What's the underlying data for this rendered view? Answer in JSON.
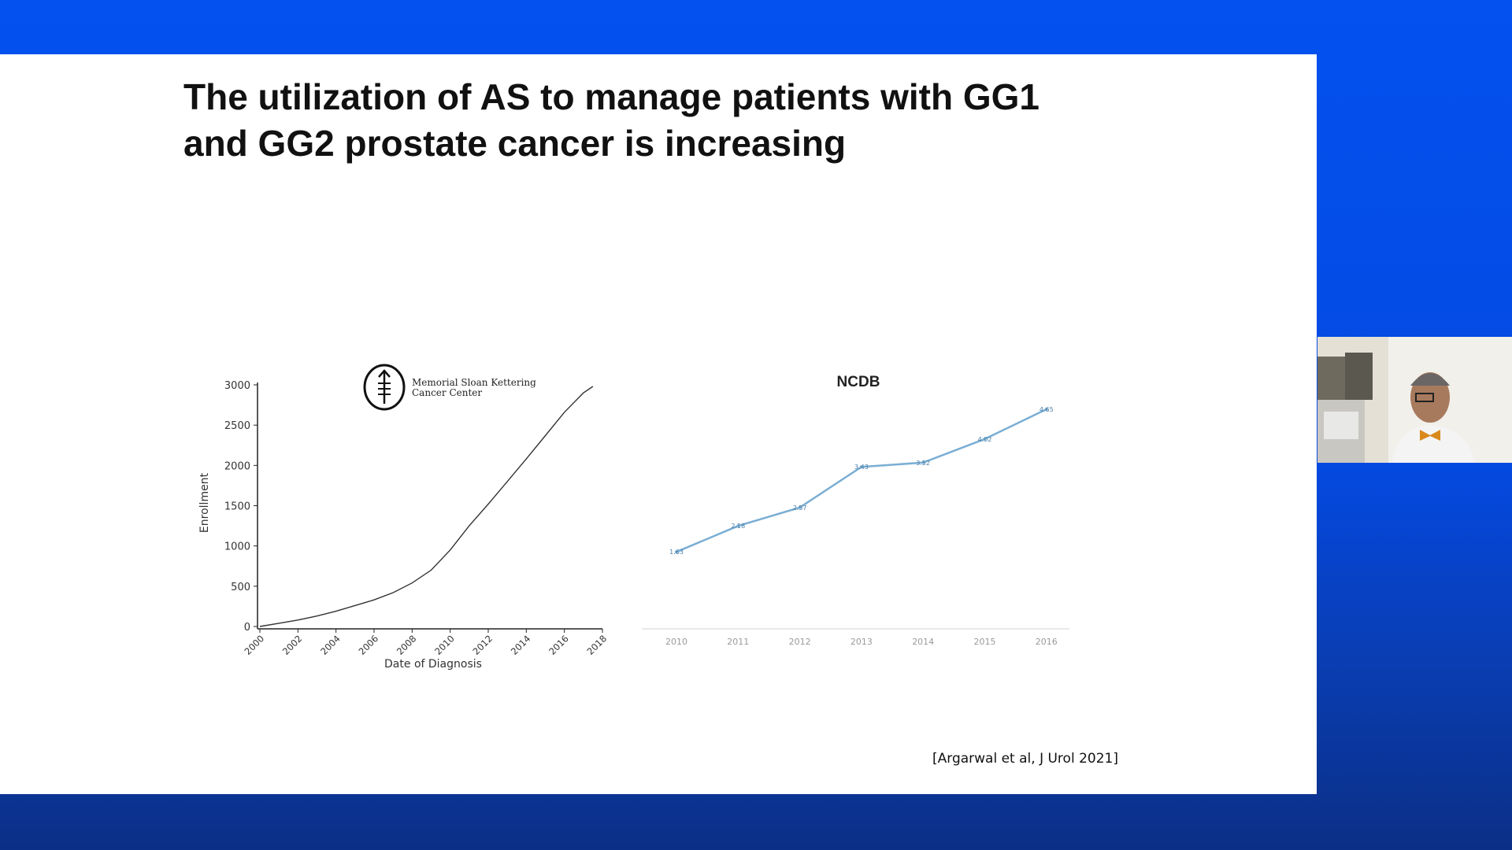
{
  "slide": {
    "title_line1": "The utilization of AS to manage patients with GG1",
    "title_line2": "and GG2 prostate cancer is increasing",
    "citation": "[Argarwal et al, J Urol 2021]"
  },
  "logo": {
    "line1": "Memorial Sloan Kettering",
    "line2": "Cancer Center"
  },
  "chart_data": [
    {
      "type": "line",
      "xlabel": "Date of Diagnosis",
      "ylabel": "Enrollment",
      "x_ticks": [
        "2000",
        "2002",
        "2004",
        "2006",
        "2008",
        "2010",
        "2012",
        "2014",
        "2016",
        "2018"
      ],
      "y_ticks": [
        "0",
        "500",
        "1000",
        "1500",
        "2000",
        "2500",
        "3000"
      ],
      "xlim": [
        2000,
        2018
      ],
      "ylim": [
        0,
        3000
      ],
      "series": [
        {
          "x": [
            2000,
            2001,
            2002,
            2003,
            2004,
            2005,
            2006,
            2007,
            2008,
            2009,
            2010,
            2011,
            2012,
            2013,
            2014,
            2015,
            2016,
            2017,
            2017.5
          ],
          "y": [
            0,
            40,
            80,
            130,
            190,
            260,
            330,
            420,
            540,
            700,
            950,
            1250,
            1520,
            1800,
            2080,
            2370,
            2660,
            2900,
            2980
          ]
        }
      ],
      "color": "#333333",
      "grid": false
    },
    {
      "type": "line",
      "title": "NCDB",
      "categories": [
        "2010",
        "2011",
        "2012",
        "2013",
        "2014",
        "2015",
        "2016"
      ],
      "values": [
        1.63,
        2.18,
        2.57,
        3.43,
        3.52,
        4.02,
        4.65
      ],
      "value_labels": [
        "1.63",
        "2.18",
        "2.57",
        "3.43",
        "3.52",
        "4.02",
        "4.65"
      ],
      "ylim": [
        0,
        5.5
      ],
      "color": "#7aaed4",
      "grid": false
    }
  ]
}
